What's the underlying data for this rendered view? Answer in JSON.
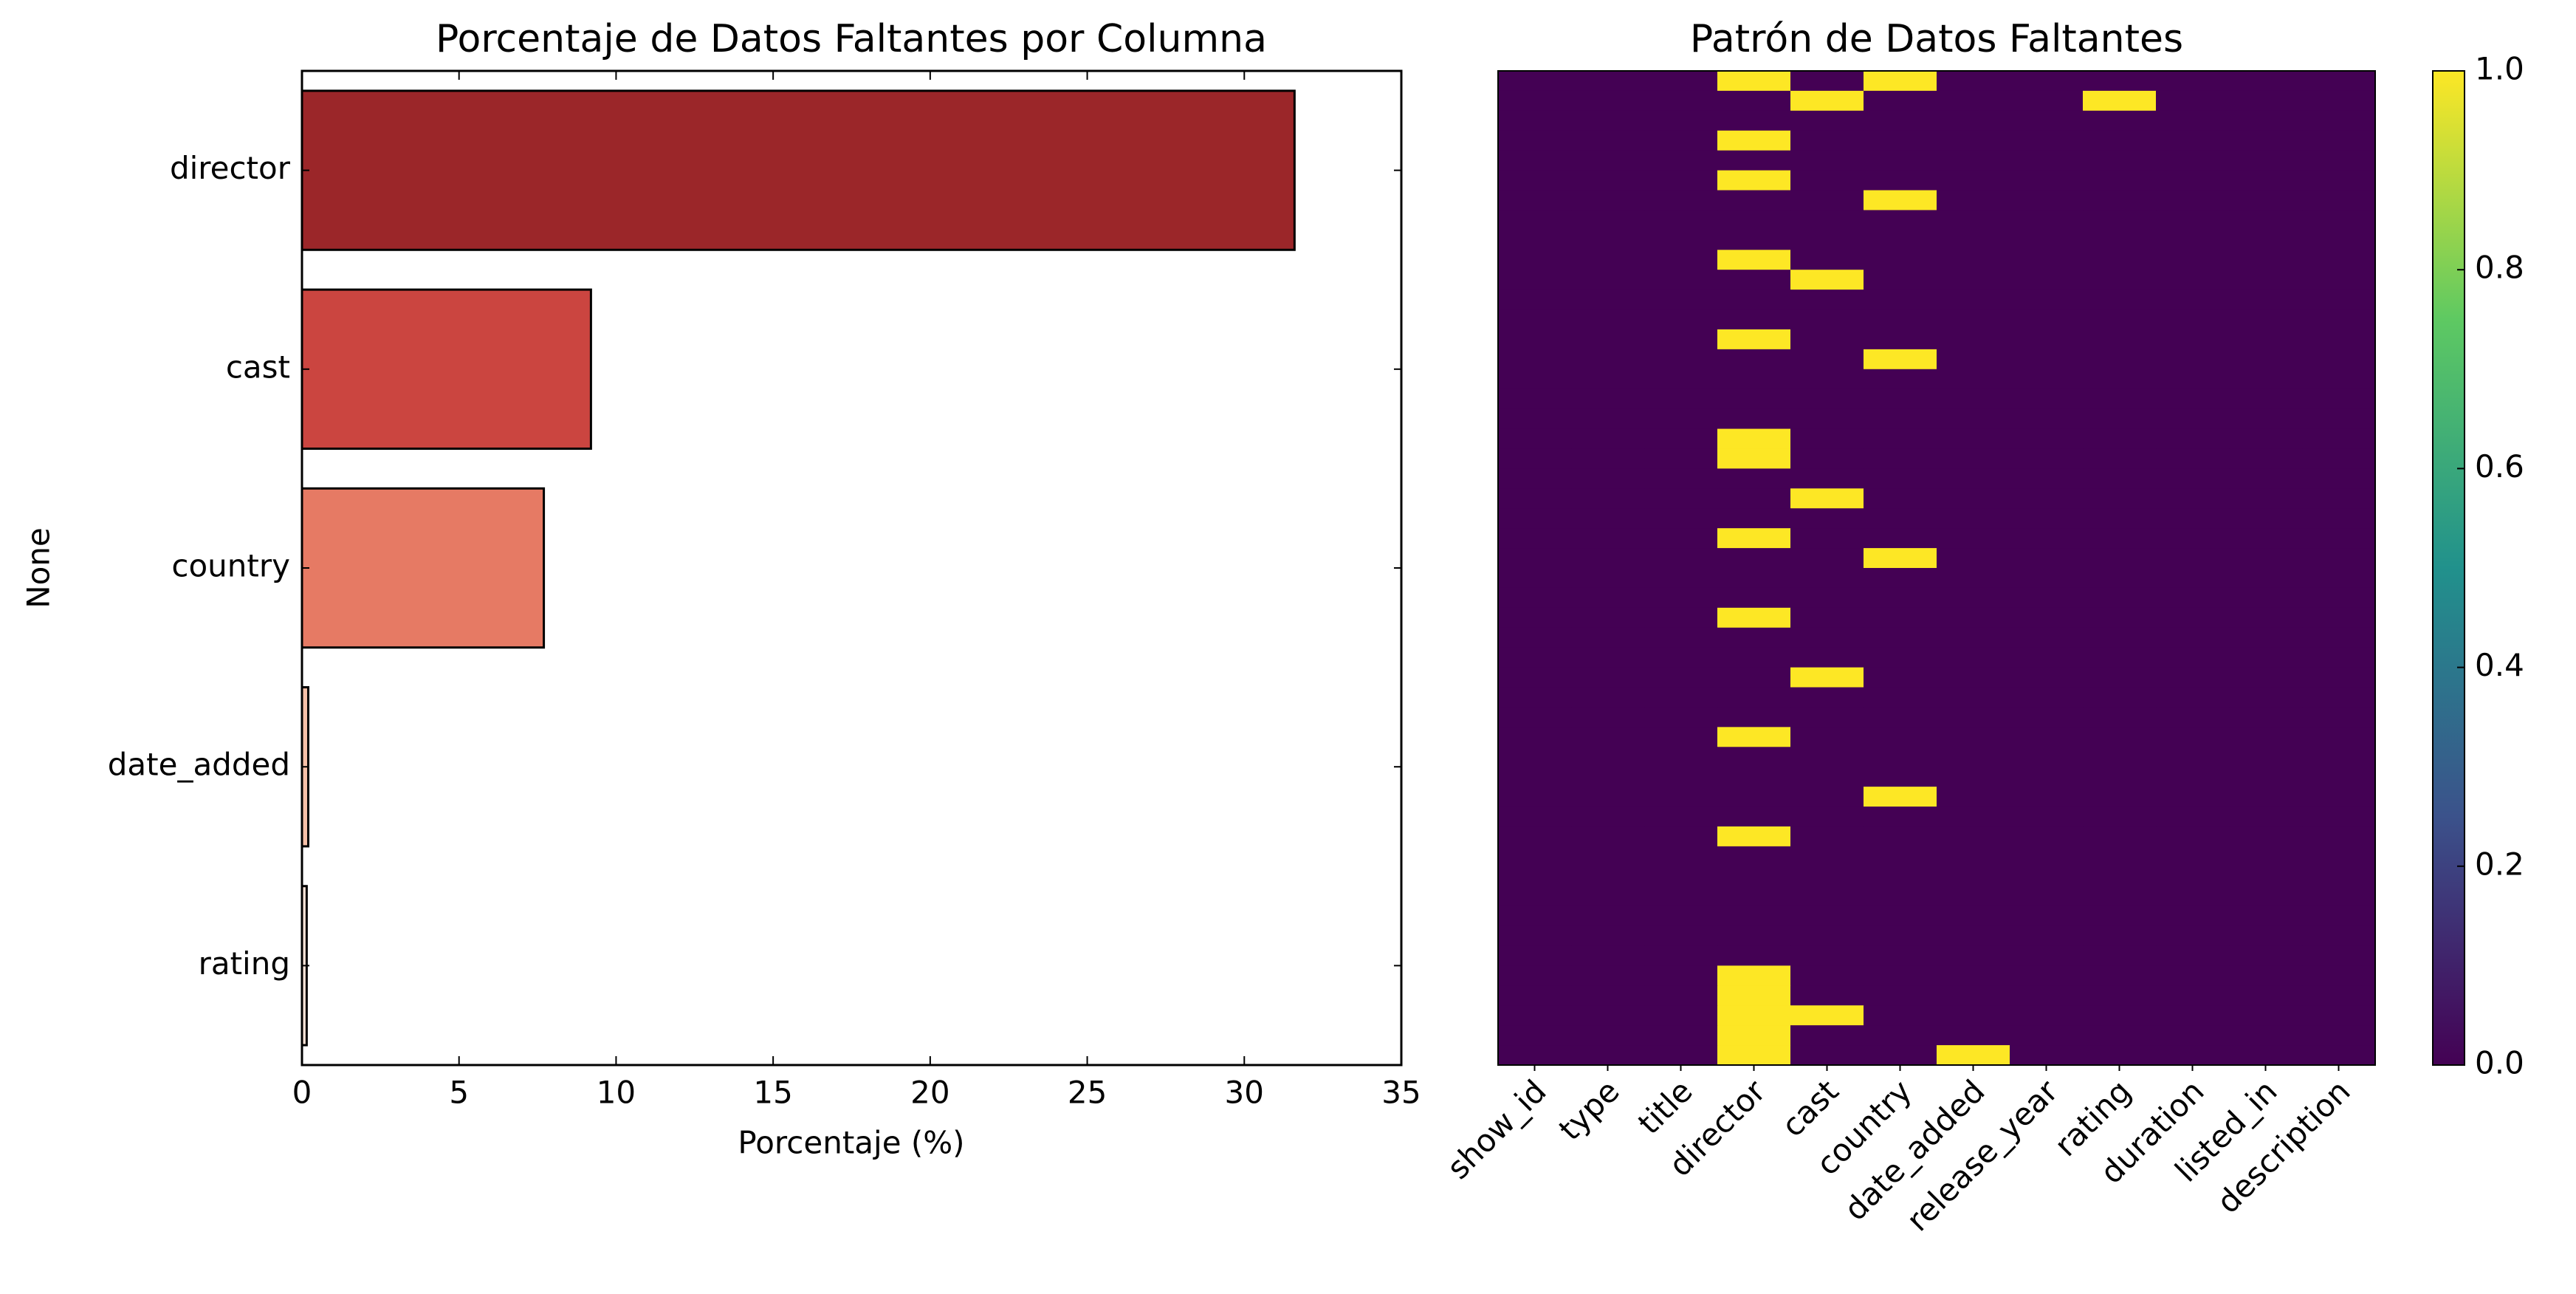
{
  "chart_data": [
    {
      "type": "barh",
      "title": "Porcentaje de Datos Faltantes por Columna",
      "xlabel": "Porcentaje (%)",
      "ylabel": "None",
      "categories": [
        "director",
        "cast",
        "country",
        "date_added",
        "rating"
      ],
      "values": [
        31.6,
        9.2,
        7.7,
        0.2,
        0.15
      ],
      "colors": [
        "#9b2629",
        "#cb4540",
        "#e67a64",
        "#f6c0a8",
        "#fbe4d8"
      ],
      "xlim": [
        0,
        35
      ],
      "xticks": [
        0,
        5,
        10,
        15,
        20,
        25,
        30,
        35
      ]
    },
    {
      "type": "heatmap",
      "title": "Patrón de Datos Faltantes",
      "x": [
        "show_id",
        "type",
        "title",
        "director",
        "cast",
        "country",
        "date_added",
        "release_year",
        "rating",
        "duration",
        "listed_in",
        "description"
      ],
      "colorscale": [
        "#440154",
        "#3b528b",
        "#21918c",
        "#5ec962",
        "#fde725"
      ],
      "ylim": [
        0,
        1
      ],
      "yticks": [
        {
          "value": 0,
          "label": "0.0"
        },
        {
          "value": 0.2,
          "label": "0.2"
        },
        {
          "value": 0.4,
          "label": "0.4"
        },
        {
          "value": 0.6,
          "label": "0.6"
        },
        {
          "value": 0.8,
          "label": "0.8"
        },
        {
          "value": 1,
          "label": "1.0"
        }
      ],
      "z": [
        [
          0,
          0,
          0,
          1,
          0,
          1,
          0,
          0,
          0,
          0,
          0,
          0
        ],
        [
          0,
          0,
          0,
          0,
          1,
          0,
          0,
          0,
          1,
          0,
          0,
          0
        ],
        [
          0,
          0,
          0,
          0,
          0,
          0,
          0,
          0,
          0,
          0,
          0,
          0
        ],
        [
          0,
          0,
          0,
          1,
          0,
          0,
          0,
          0,
          0,
          0,
          0,
          0
        ],
        [
          0,
          0,
          0,
          0,
          0,
          0,
          0,
          0,
          0,
          0,
          0,
          0
        ],
        [
          0,
          0,
          0,
          1,
          0,
          0,
          0,
          0,
          0,
          0,
          0,
          0
        ],
        [
          0,
          0,
          0,
          0,
          0,
          1,
          0,
          0,
          0,
          0,
          0,
          0
        ],
        [
          0,
          0,
          0,
          0,
          0,
          0,
          0,
          0,
          0,
          0,
          0,
          0
        ],
        [
          0,
          0,
          0,
          0,
          0,
          0,
          0,
          0,
          0,
          0,
          0,
          0
        ],
        [
          0,
          0,
          0,
          1,
          0,
          0,
          0,
          0,
          0,
          0,
          0,
          0
        ],
        [
          0,
          0,
          0,
          0,
          1,
          0,
          0,
          0,
          0,
          0,
          0,
          0
        ],
        [
          0,
          0,
          0,
          0,
          0,
          0,
          0,
          0,
          0,
          0,
          0,
          0
        ],
        [
          0,
          0,
          0,
          0,
          0,
          0,
          0,
          0,
          0,
          0,
          0,
          0
        ],
        [
          0,
          0,
          0,
          1,
          0,
          0,
          0,
          0,
          0,
          0,
          0,
          0
        ],
        [
          0,
          0,
          0,
          0,
          0,
          1,
          0,
          0,
          0,
          0,
          0,
          0
        ],
        [
          0,
          0,
          0,
          0,
          0,
          0,
          0,
          0,
          0,
          0,
          0,
          0
        ],
        [
          0,
          0,
          0,
          0,
          0,
          0,
          0,
          0,
          0,
          0,
          0,
          0
        ],
        [
          0,
          0,
          0,
          0,
          0,
          0,
          0,
          0,
          0,
          0,
          0,
          0
        ],
        [
          0,
          0,
          0,
          1,
          0,
          0,
          0,
          0,
          0,
          0,
          0,
          0
        ],
        [
          0,
          0,
          0,
          1,
          0,
          0,
          0,
          0,
          0,
          0,
          0,
          0
        ],
        [
          0,
          0,
          0,
          0,
          0,
          0,
          0,
          0,
          0,
          0,
          0,
          0
        ],
        [
          0,
          0,
          0,
          0,
          1,
          0,
          0,
          0,
          0,
          0,
          0,
          0
        ],
        [
          0,
          0,
          0,
          0,
          0,
          0,
          0,
          0,
          0,
          0,
          0,
          0
        ],
        [
          0,
          0,
          0,
          1,
          0,
          0,
          0,
          0,
          0,
          0,
          0,
          0
        ],
        [
          0,
          0,
          0,
          0,
          0,
          1,
          0,
          0,
          0,
          0,
          0,
          0
        ],
        [
          0,
          0,
          0,
          0,
          0,
          0,
          0,
          0,
          0,
          0,
          0,
          0
        ],
        [
          0,
          0,
          0,
          0,
          0,
          0,
          0,
          0,
          0,
          0,
          0,
          0
        ],
        [
          0,
          0,
          0,
          1,
          0,
          0,
          0,
          0,
          0,
          0,
          0,
          0
        ],
        [
          0,
          0,
          0,
          0,
          0,
          0,
          0,
          0,
          0,
          0,
          0,
          0
        ],
        [
          0,
          0,
          0,
          0,
          0,
          0,
          0,
          0,
          0,
          0,
          0,
          0
        ],
        [
          0,
          0,
          0,
          0,
          1,
          0,
          0,
          0,
          0,
          0,
          0,
          0
        ],
        [
          0,
          0,
          0,
          0,
          0,
          0,
          0,
          0,
          0,
          0,
          0,
          0
        ],
        [
          0,
          0,
          0,
          0,
          0,
          0,
          0,
          0,
          0,
          0,
          0,
          0
        ],
        [
          0,
          0,
          0,
          1,
          0,
          0,
          0,
          0,
          0,
          0,
          0,
          0
        ],
        [
          0,
          0,
          0,
          0,
          0,
          0,
          0,
          0,
          0,
          0,
          0,
          0
        ],
        [
          0,
          0,
          0,
          0,
          0,
          0,
          0,
          0,
          0,
          0,
          0,
          0
        ],
        [
          0,
          0,
          0,
          0,
          0,
          1,
          0,
          0,
          0,
          0,
          0,
          0
        ],
        [
          0,
          0,
          0,
          0,
          0,
          0,
          0,
          0,
          0,
          0,
          0,
          0
        ],
        [
          0,
          0,
          0,
          1,
          0,
          0,
          0,
          0,
          0,
          0,
          0,
          0
        ],
        [
          0,
          0,
          0,
          0,
          0,
          0,
          0,
          0,
          0,
          0,
          0,
          0
        ],
        [
          0,
          0,
          0,
          0,
          0,
          0,
          0,
          0,
          0,
          0,
          0,
          0
        ],
        [
          0,
          0,
          0,
          0,
          0,
          0,
          0,
          0,
          0,
          0,
          0,
          0
        ],
        [
          0,
          0,
          0,
          0,
          0,
          0,
          0,
          0,
          0,
          0,
          0,
          0
        ],
        [
          0,
          0,
          0,
          0,
          0,
          0,
          0,
          0,
          0,
          0,
          0,
          0
        ],
        [
          0,
          0,
          0,
          0,
          0,
          0,
          0,
          0,
          0,
          0,
          0,
          0
        ],
        [
          0,
          0,
          0,
          1,
          0,
          0,
          0,
          0,
          0,
          0,
          0,
          0
        ],
        [
          0,
          0,
          0,
          1,
          0,
          0,
          0,
          0,
          0,
          0,
          0,
          0
        ],
        [
          0,
          0,
          0,
          1,
          1,
          0,
          0,
          0,
          0,
          0,
          0,
          0
        ],
        [
          0,
          0,
          0,
          1,
          0,
          0,
          0,
          0,
          0,
          0,
          0,
          0
        ],
        [
          0,
          0,
          0,
          1,
          0,
          0,
          1,
          0,
          0,
          0,
          0,
          0
        ]
      ]
    }
  ]
}
